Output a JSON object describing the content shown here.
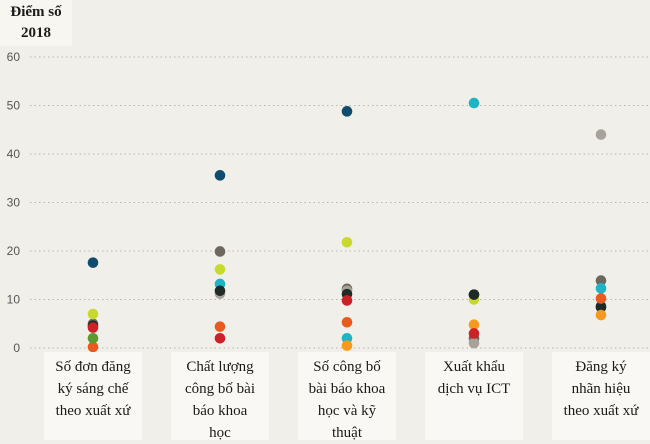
{
  "chart_data": {
    "type": "scatter",
    "title": "Điểm số 2018",
    "title_lines": [
      "Điểm số",
      "2018"
    ],
    "xlabel": "",
    "ylabel": "",
    "ylim": [
      0,
      60
    ],
    "yticks": [
      0,
      10,
      20,
      30,
      40,
      50,
      60
    ],
    "grid": true,
    "categories": [
      "Số đơn đăng ký sáng chế theo xuất xứ",
      "Chất lượng công bố bài báo khoa học",
      "Số công bố bài báo khoa học và kỹ thuật",
      "Xuất khẩu dịch vụ ICT",
      "Đăng ký nhãn hiệu theo xuất xứ"
    ],
    "category_lines": [
      [
        "Số đơn đăng",
        "ký sáng chế",
        "theo xuất xứ"
      ],
      [
        "Chất lượng",
        "công bố bài",
        "báo khoa",
        "học"
      ],
      [
        "Số công bố",
        "bài báo khoa",
        "học và kỹ",
        "thuật"
      ],
      [
        "Xuất khẩu",
        "dịch vụ ICT"
      ],
      [
        "Đăng ký",
        "nhãn hiệu",
        "theo xuất xứ"
      ]
    ],
    "series": [
      {
        "color": "#0e4d6e",
        "values": [
          17.6,
          35.6,
          48.8,
          11.0,
          8.6
        ]
      },
      {
        "color": "#6e675e",
        "values": [
          5.0,
          19.9,
          12.2,
          2.0,
          13.9
        ]
      },
      {
        "color": "#c8d92e",
        "values": [
          7.0,
          16.2,
          21.8,
          10.0,
          null
        ]
      },
      {
        "color": "#1fb3c6",
        "values": [
          null,
          13.2,
          2.0,
          50.5,
          12.3
        ]
      },
      {
        "color": "#a7a29a",
        "values": [
          null,
          11.2,
          11.8,
          1.0,
          44.0
        ]
      },
      {
        "color": "#1e2b26",
        "values": [
          4.6,
          11.8,
          11.1,
          11.0,
          8.4
        ]
      },
      {
        "color": "#f59a1e",
        "values": [
          null,
          null,
          0.5,
          4.8,
          6.8
        ]
      },
      {
        "color": "#e85a1e",
        "values": [
          0.2,
          4.4,
          5.3,
          null,
          10.2
        ]
      },
      {
        "color": "#cc2127",
        "values": [
          4.2,
          2.0,
          9.8,
          3.0,
          null
        ]
      },
      {
        "color": "#5b9a2d",
        "values": [
          2.0,
          null,
          null,
          null,
          null
        ]
      }
    ]
  }
}
